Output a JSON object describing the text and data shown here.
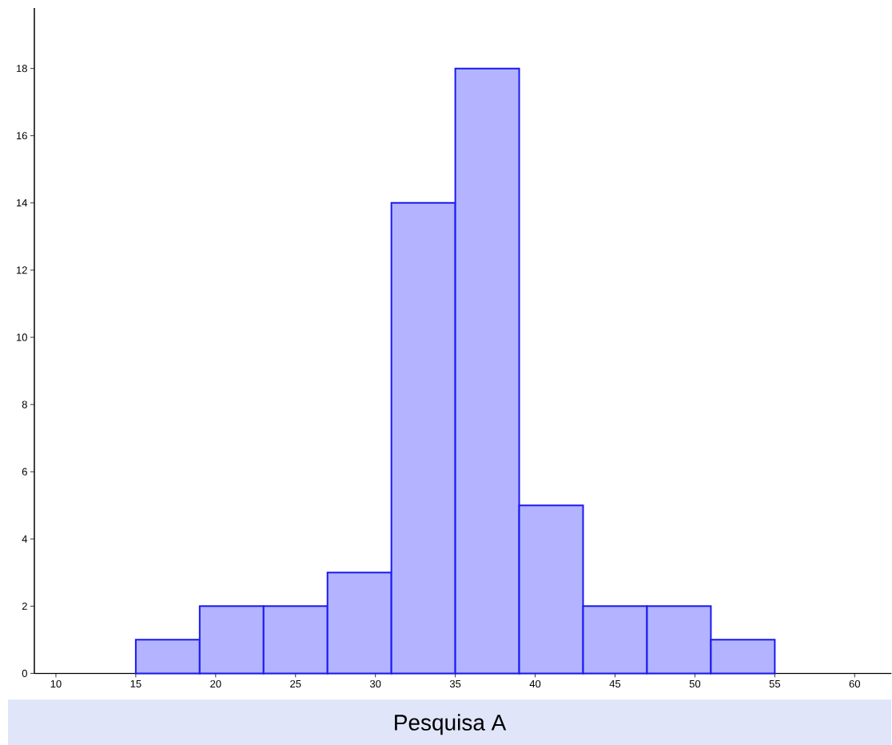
{
  "chart_data": {
    "type": "histogram",
    "title": "Pesquisa A",
    "bins": [
      15,
      19,
      23,
      27,
      31,
      35,
      39,
      43,
      47,
      51,
      55
    ],
    "values": [
      1,
      2,
      2,
      3,
      14,
      18,
      5,
      2,
      2,
      1
    ],
    "color": "#b3b3ff",
    "xlim": [
      8.65,
      62.3
    ],
    "ylim": [
      0,
      19.8
    ],
    "xticks": [
      10,
      15,
      20,
      25,
      30,
      35,
      40,
      45,
      50,
      55,
      60
    ],
    "yticks": [
      0,
      2,
      4,
      6,
      8,
      10,
      12,
      14,
      16,
      18
    ]
  }
}
